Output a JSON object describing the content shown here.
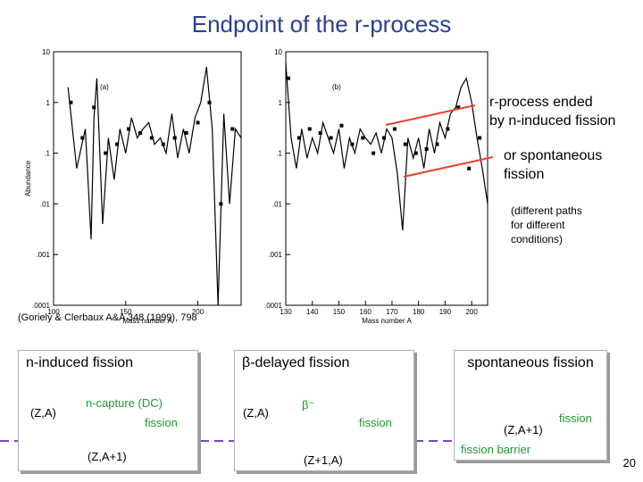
{
  "title": "Endpoint of the r-process",
  "annotations": {
    "fission_ended_l1": "r-process ended",
    "fission_ended_l2": "by n-induced fission",
    "spontaneous_l1": "or spontaneous",
    "spontaneous_l2": "fission",
    "paths_l1": "(different paths",
    "paths_l2": "for different",
    "paths_l3": "conditions)",
    "citation": "(Goriely & Clerbaux A&A 348 (1999), 798"
  },
  "boxes": {
    "n_induced": "n-induced fission",
    "beta_delayed": "β-delayed fission",
    "spontaneous": "spontaneous fission"
  },
  "diagram": {
    "za_1": "(Z,A)",
    "n_capture": "n-capture (DC)",
    "fission_1": "fission",
    "za1_1": "(Z,A+1)",
    "za_2": "(Z,A)",
    "beta_minus": "β⁻",
    "fission_2": "fission",
    "z1a": "(Z+1,A)",
    "za1_3": "(Z,A+1)",
    "fission_3": "fission",
    "fission_barrier": "fission barrier"
  },
  "page_number": "20",
  "colors": {
    "title": "#2b3f8f",
    "arrow": "#e8432d",
    "green": "#1e9a2a",
    "barrier": "#7b45c8"
  },
  "chart_data": [
    {
      "type": "line",
      "panel_label": "(a)",
      "xlabel": "Mass number A",
      "ylabel": "Abundance",
      "x_ticks": [
        "100",
        "150",
        "200"
      ],
      "y_ticks": [
        "10",
        "1",
        ".1",
        ".01",
        ".001",
        ".0001"
      ],
      "y_scale": "log",
      "xlim": [
        100,
        230
      ],
      "ylim": [
        0.0001,
        10
      ],
      "series": [
        {
          "style": "line",
          "x": [
            110,
            116,
            122,
            126,
            128,
            130,
            134,
            138,
            142,
            146,
            150,
            154,
            158,
            162,
            166,
            170,
            174,
            178,
            182,
            186,
            190,
            194,
            198,
            202,
            206,
            210,
            214,
            218,
            222,
            226,
            230
          ],
          "y": [
            2,
            0.05,
            0.3,
            0.002,
            0.5,
            3,
            0.004,
            0.2,
            0.03,
            0.3,
            0.1,
            0.5,
            0.2,
            0.3,
            0.4,
            0.15,
            0.2,
            0.1,
            0.6,
            0.08,
            0.3,
            0.1,
            0.5,
            1,
            5,
            0.3,
            0.0001,
            0.6,
            0.01,
            0.3,
            0.2
          ]
        },
        {
          "style": "points",
          "x": [
            112,
            120,
            128,
            136,
            144,
            152,
            160,
            168,
            176,
            184,
            192,
            200,
            208,
            216,
            224
          ],
          "y": [
            1,
            0.2,
            0.8,
            0.1,
            0.15,
            0.3,
            0.25,
            0.2,
            0.15,
            0.2,
            0.25,
            0.4,
            1,
            0.01,
            0.3
          ]
        }
      ]
    },
    {
      "type": "line",
      "panel_label": "(b)",
      "xlabel": "Mass number A",
      "ylabel": "",
      "x_ticks": [
        "130",
        "140",
        "150",
        "160",
        "170",
        "180",
        "190",
        "200"
      ],
      "y_ticks": [
        "10",
        "1",
        ".1",
        ".01",
        ".001",
        ".0001"
      ],
      "y_scale": "log",
      "xlim": [
        130,
        206
      ],
      "ylim": [
        0.0001,
        10
      ],
      "series": [
        {
          "style": "line",
          "x": [
            130,
            132,
            134,
            136,
            138,
            140,
            142,
            144,
            146,
            148,
            150,
            152,
            154,
            156,
            158,
            160,
            162,
            164,
            166,
            168,
            170,
            172,
            174,
            176,
            178,
            180,
            182,
            184,
            186,
            188,
            190,
            192,
            194,
            196,
            198,
            200,
            202,
            204,
            206
          ],
          "y": [
            6,
            0.2,
            0.05,
            0.3,
            0.08,
            0.2,
            0.1,
            0.4,
            0.2,
            0.1,
            0.3,
            0.05,
            0.2,
            0.1,
            0.3,
            0.2,
            0.15,
            0.25,
            0.1,
            0.3,
            0.2,
            0.04,
            0.003,
            0.2,
            0.08,
            0.2,
            0.05,
            0.3,
            0.1,
            0.4,
            0.2,
            0.6,
            0.8,
            2,
            3,
            1,
            0.2,
            0.05,
            0.01
          ]
        },
        {
          "style": "points",
          "x": [
            131,
            135,
            139,
            143,
            147,
            151,
            155,
            159,
            163,
            167,
            171,
            175,
            179,
            183,
            187,
            191,
            195,
            199,
            203
          ],
          "y": [
            3,
            0.2,
            0.3,
            0.25,
            0.2,
            0.35,
            0.15,
            0.2,
            0.1,
            0.2,
            0.3,
            0.15,
            0.1,
            0.12,
            0.15,
            0.3,
            0.8,
            0.05,
            0.2
          ]
        }
      ]
    }
  ]
}
